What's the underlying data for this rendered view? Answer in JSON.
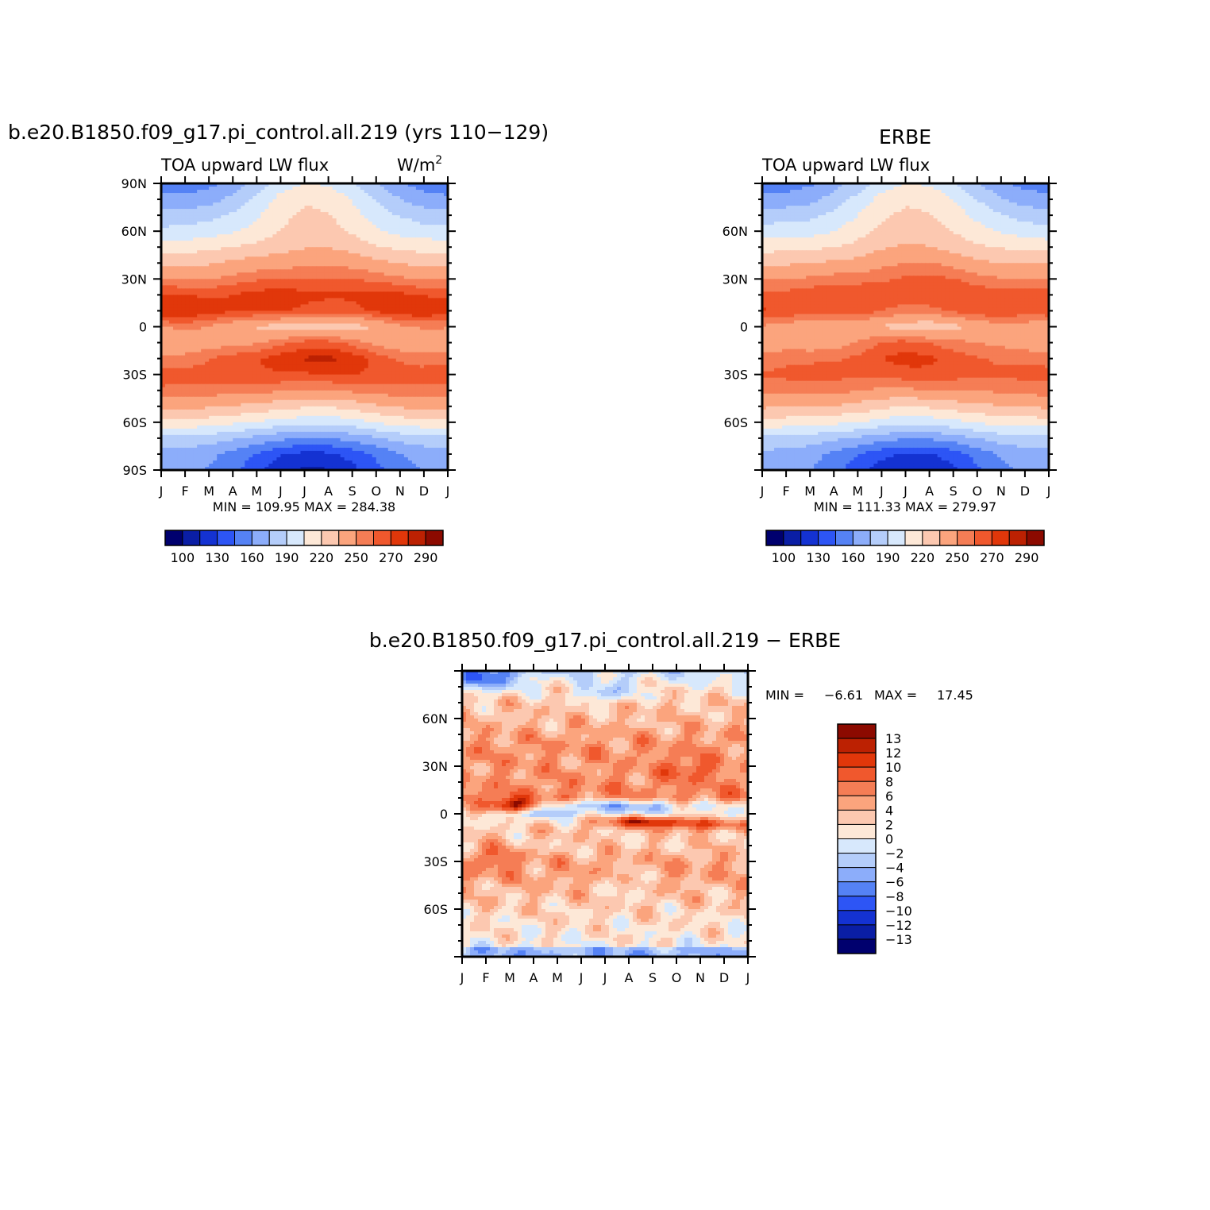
{
  "chart_data": [
    {
      "type": "heatmap",
      "title": "b.e20.B1850.f09_g17.pi_control.all.219 (yrs 110−129)",
      "left_label": "TOA upward LW flux",
      "units_label": "W/m",
      "units_sup": "2",
      "x_ticks": [
        "J",
        "F",
        "M",
        "A",
        "M",
        "J",
        "J",
        "A",
        "S",
        "O",
        "N",
        "D",
        "J"
      ],
      "y_ticks": [
        "90N",
        "60N",
        "30N",
        "0",
        "30S",
        "60S",
        "90S"
      ],
      "xlim": [
        0,
        12
      ],
      "ylim": [
        -90,
        90
      ],
      "min_max": "MIN =  109.95  MAX =  284.38",
      "colorbar_labels": [
        "100",
        "130",
        "160",
        "190",
        "220",
        "250",
        "270",
        "290"
      ],
      "field": {
        "lat_nodes": [
          90,
          80,
          70,
          60,
          50,
          40,
          30,
          20,
          10,
          0,
          -10,
          -20,
          -30,
          -40,
          -50,
          -60,
          -70,
          -80,
          -90
        ],
        "profile_jan": [
          150,
          164,
          180,
          194,
          213,
          232,
          250,
          270,
          278,
          250,
          238,
          255,
          265,
          258,
          240,
          215,
          185,
          168,
          164
        ],
        "profile_jul": [
          205,
          218,
          222,
          226,
          234,
          248,
          262,
          274,
          266,
          225,
          262,
          282,
          270,
          250,
          222,
          195,
          160,
          125,
          112
        ],
        "season_shape": [
          0.0,
          0.02,
          0.1,
          0.3,
          0.55,
          0.85,
          1.0,
          0.97,
          0.75,
          0.45,
          0.2,
          0.05,
          0.0
        ]
      }
    },
    {
      "type": "heatmap",
      "title": "ERBE",
      "left_label": "TOA upward LW flux",
      "x_ticks": [
        "J",
        "F",
        "M",
        "A",
        "M",
        "J",
        "J",
        "A",
        "S",
        "O",
        "N",
        "D",
        "J"
      ],
      "y_ticks": [
        "60N",
        "30N",
        "0",
        "30S",
        "60S"
      ],
      "xlim": [
        0,
        12
      ],
      "ylim": [
        -90,
        90
      ],
      "min_max": "MIN =  111.33  MAX =  279.97",
      "colorbar_labels": [
        "100",
        "130",
        "160",
        "190",
        "220",
        "250",
        "270",
        "290"
      ],
      "field": {
        "lat_nodes": [
          90,
          80,
          70,
          60,
          50,
          40,
          30,
          20,
          10,
          0,
          -10,
          -20,
          -30,
          -40,
          -50,
          -60,
          -70,
          -80,
          -90
        ],
        "profile_jan": [
          152,
          166,
          182,
          196,
          214,
          232,
          250,
          266,
          270,
          245,
          240,
          255,
          262,
          255,
          238,
          214,
          186,
          170,
          166
        ],
        "profile_jul": [
          205,
          218,
          223,
          228,
          236,
          250,
          262,
          268,
          258,
          228,
          262,
          272,
          265,
          248,
          222,
          196,
          162,
          128,
          114
        ],
        "season_shape": [
          0.0,
          0.02,
          0.1,
          0.3,
          0.55,
          0.85,
          1.0,
          0.97,
          0.75,
          0.45,
          0.2,
          0.05,
          0.0
        ]
      }
    },
    {
      "type": "heatmap",
      "title": "b.e20.B1850.f09_g17.pi_control.all.219 − ERBE",
      "x_ticks": [
        "J",
        "F",
        "M",
        "A",
        "M",
        "J",
        "J",
        "A",
        "S",
        "O",
        "N",
        "D",
        "J"
      ],
      "y_ticks": [
        "60N",
        "30N",
        "0",
        "30S",
        "60S"
      ],
      "xlim": [
        0,
        12
      ],
      "ylim": [
        -90,
        90
      ],
      "min_max_label_min": "MIN =",
      "min_value": "−6.61",
      "min_max_label_max": "MAX =",
      "max_value": "17.45",
      "colorbar_labels": [
        "13",
        "12",
        "10",
        "8",
        "6",
        "4",
        "2",
        "0",
        "−2",
        "−4",
        "−6",
        "−8",
        "−10",
        "−12",
        "−13"
      ],
      "field": {
        "lat_nodes": [
          90,
          80,
          70,
          60,
          50,
          40,
          30,
          20,
          10,
          5,
          0,
          -5,
          -10,
          -20,
          -30,
          -40,
          -50,
          -60,
          -70,
          -80,
          -90
        ],
        "profile": [
          -2,
          1,
          3,
          3.5,
          5,
          6,
          5.5,
          6,
          7,
          2,
          0,
          1,
          3,
          3,
          5,
          5,
          3.5,
          2.5,
          1.5,
          1,
          -1
        ]
      }
    }
  ],
  "palettes": {
    "flux": [
      "#00006e",
      "#0a1ea5",
      "#1432d2",
      "#2d55f5",
      "#5582f5",
      "#8cadfa",
      "#b4cdfa",
      "#d7e8fc",
      "#fde8d7",
      "#fcc8b0",
      "#fba47d",
      "#f57d55",
      "#f0582d",
      "#e1370a",
      "#bc2102",
      "#8c0a00"
    ],
    "diff": [
      "#00006e",
      "#0a1ea5",
      "#1432d2",
      "#2d55f5",
      "#5582f5",
      "#8cadfa",
      "#b4cdfa",
      "#d7e8fc",
      "#fde8d7",
      "#fcc8b0",
      "#fba47d",
      "#f57d55",
      "#f0582d",
      "#e1370a",
      "#bc2102",
      "#8c0a00"
    ]
  },
  "levels": {
    "flux": [
      100,
      115,
      130,
      145,
      160,
      175,
      190,
      205,
      220,
      235,
      250,
      260,
      270,
      280,
      290
    ],
    "diff": [
      -13,
      -12,
      -10,
      -8,
      -6,
      -4,
      -2,
      0,
      2,
      4,
      6,
      8,
      10,
      12,
      13
    ]
  }
}
